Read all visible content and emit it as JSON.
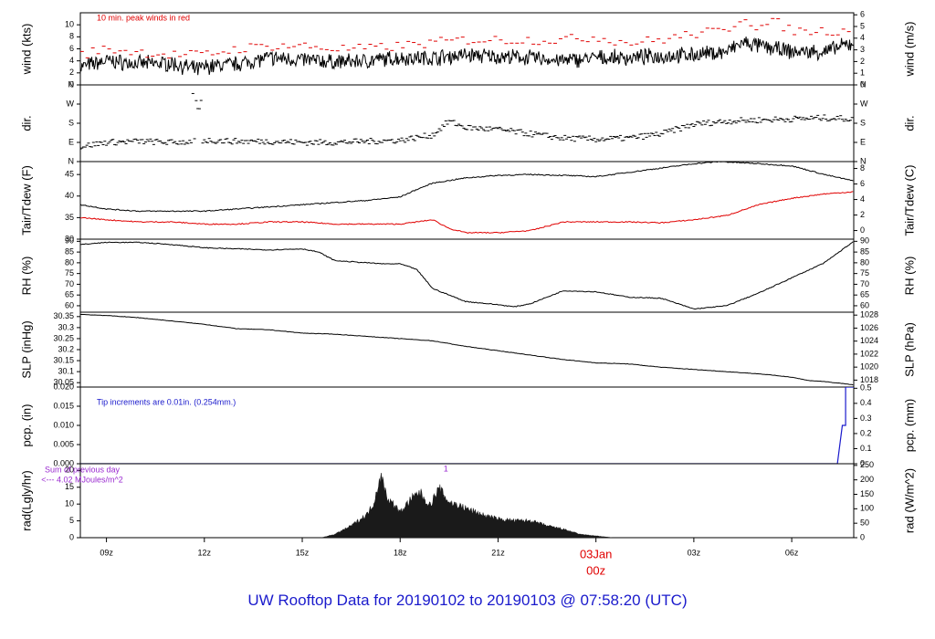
{
  "title": "UW Rooftop Data for 20190102  to  20190103 @ 07:58:20  (UTC)",
  "colors": {
    "black": "#000000",
    "red": "#e00000",
    "blue": "#1a1acc",
    "purple": "#9a2ad0"
  },
  "x_axis": {
    "range_hours": [
      8.2,
      31.9
    ],
    "ticks": [
      {
        "h": 9,
        "label": "09z"
      },
      {
        "h": 12,
        "label": "12z"
      },
      {
        "h": 15,
        "label": "15z"
      },
      {
        "h": 18,
        "label": "18z"
      },
      {
        "h": 21,
        "label": "21z"
      },
      {
        "h": 24,
        "label": ""
      },
      {
        "h": 27,
        "label": "03z"
      },
      {
        "h": 30,
        "label": "06z"
      }
    ],
    "day_marker": {
      "h": 24,
      "label1": "03Jan",
      "label2": "00z"
    }
  },
  "chart_data": [
    {
      "id": "wind",
      "type": "line",
      "ylabel_left": "wind (kts)",
      "ylabel_right": "wind (m/s)",
      "ylim": [
        0,
        12
      ],
      "left_ticks": [
        0,
        2,
        4,
        6,
        8,
        10
      ],
      "right_ticks_value": [
        0,
        1,
        2,
        3,
        4,
        5,
        6
      ],
      "annotation": "10 min. peak winds in red",
      "series": [
        {
          "role": "mean",
          "color": "#000000",
          "x": [
            8.2,
            9.0,
            10.0,
            11.0,
            11.8,
            12.0,
            13.0,
            14.0,
            15.0,
            16.0,
            17.0,
            18.0,
            19.0,
            20.0,
            21.0,
            22.0,
            23.0,
            24.0,
            25.0,
            26.0,
            27.0,
            28.0,
            28.5,
            29.0,
            30.0,
            31.0,
            31.9
          ],
          "y": [
            3.0,
            4.0,
            3.5,
            3.6,
            2.5,
            3.0,
            3.5,
            4.5,
            4.2,
            3.8,
            4.0,
            4.5,
            4.5,
            5.0,
            4.7,
            4.5,
            4.0,
            4.5,
            4.5,
            4.8,
            5.0,
            5.5,
            7.0,
            6.5,
            5.5,
            5.5,
            7.0
          ]
        },
        {
          "role": "peak",
          "color": "#e00000",
          "x": [
            8.2,
            9.0,
            10.0,
            11.0,
            12.0,
            13.0,
            14.0,
            15.0,
            16.0,
            17.0,
            18.0,
            19.0,
            20.0,
            21.0,
            22.0,
            23.0,
            24.0,
            25.0,
            26.0,
            27.0,
            28.0,
            28.5,
            29.0,
            29.5,
            30.0,
            31.0,
            31.9
          ],
          "y": [
            5.0,
            6.0,
            5.5,
            5.0,
            5.0,
            6.0,
            6.5,
            6.5,
            6.0,
            6.0,
            6.5,
            7.0,
            7.5,
            7.5,
            7.5,
            7.5,
            8.0,
            7.0,
            7.5,
            8.5,
            9.0,
            11.5,
            9.5,
            10.5,
            9.0,
            9.0,
            9.0
          ]
        }
      ]
    },
    {
      "id": "dir",
      "type": "scatter",
      "ylabel_left": "dir.",
      "ylabel_right": "dir.",
      "ylim": [
        0,
        360
      ],
      "tick_degrees": [
        0,
        90,
        180,
        270,
        360
      ],
      "tick_labels": [
        "N",
        "E",
        "S",
        "W",
        "N"
      ],
      "series": [
        {
          "color": "#000000",
          "x": [
            8.2,
            9.0,
            10.0,
            11.0,
            11.8,
            12.0,
            13.0,
            14.0,
            15.0,
            16.0,
            17.0,
            18.0,
            19.0,
            19.5,
            20.0,
            21.0,
            22.0,
            23.0,
            24.0,
            25.0,
            26.0,
            27.0,
            28.0,
            29.0,
            30.0,
            31.0,
            31.9
          ],
          "y": [
            70,
            90,
            95,
            90,
            95,
            100,
            95,
            95,
            90,
            90,
            95,
            100,
            125,
            190,
            160,
            150,
            130,
            110,
            105,
            110,
            130,
            175,
            190,
            195,
            200,
            205,
            200
          ]
        }
      ]
    },
    {
      "id": "temp",
      "type": "line",
      "ylabel_left": "Tair/Tdew (F)",
      "ylabel_right": "Tair/Tdew (C)",
      "ylim": [
        30,
        48
      ],
      "left_ticks": [
        30,
        35,
        40,
        45
      ],
      "right_ticks_value": [
        0,
        2,
        4,
        6,
        8
      ],
      "series": [
        {
          "name": "Tair",
          "color": "#000000",
          "x": [
            8.2,
            9.0,
            10.0,
            11.0,
            12.0,
            13.0,
            14.0,
            15.0,
            16.0,
            17.0,
            18.0,
            18.5,
            19.0,
            20.0,
            21.0,
            22.0,
            23.0,
            24.0,
            25.0,
            26.0,
            27.0,
            27.8,
            29.0,
            30.0,
            31.0,
            31.9
          ],
          "y": [
            38.0,
            37.0,
            36.5,
            36.5,
            36.5,
            37.0,
            37.5,
            38.0,
            38.5,
            39.0,
            39.8,
            41.5,
            43.0,
            44.2,
            44.8,
            45.0,
            44.8,
            44.5,
            45.5,
            46.5,
            47.5,
            48.0,
            47.5,
            47.0,
            45.0,
            43.5
          ]
        },
        {
          "name": "Tdew",
          "color": "#e00000",
          "x": [
            8.2,
            9.0,
            10.0,
            11.0,
            12.0,
            13.0,
            14.0,
            15.0,
            16.0,
            17.0,
            18.0,
            19.0,
            19.5,
            20.0,
            21.0,
            22.0,
            23.0,
            24.0,
            25.0,
            26.0,
            27.0,
            28.0,
            29.0,
            30.0,
            31.0,
            31.9
          ],
          "y": [
            35.0,
            34.5,
            34.0,
            34.0,
            33.5,
            33.5,
            34.0,
            34.0,
            33.5,
            33.5,
            33.5,
            34.5,
            32.5,
            31.5,
            31.5,
            32.0,
            34.0,
            34.0,
            34.0,
            33.8,
            34.5,
            35.5,
            38.0,
            39.5,
            40.5,
            41.0
          ]
        }
      ]
    },
    {
      "id": "rh",
      "type": "line",
      "ylabel_left": "RH (%)",
      "ylabel_right": "RH (%)",
      "ylim": [
        57,
        91
      ],
      "left_ticks": [
        60,
        65,
        70,
        75,
        80,
        85,
        90
      ],
      "right_ticks_value": [
        60,
        65,
        70,
        75,
        80,
        85,
        90
      ],
      "series": [
        {
          "color": "#000000",
          "x": [
            8.2,
            9.0,
            10.0,
            11.0,
            12.0,
            13.0,
            14.0,
            15.0,
            15.5,
            16.0,
            17.0,
            17.5,
            18.0,
            18.5,
            19.0,
            20.0,
            21.0,
            21.5,
            22.0,
            23.0,
            24.0,
            25.0,
            26.0,
            27.0,
            28.0,
            29.0,
            30.0,
            31.0,
            31.9
          ],
          "y": [
            88.5,
            89.5,
            89.5,
            88.5,
            87.0,
            86.5,
            86.0,
            86.5,
            85.0,
            81.0,
            80.0,
            79.5,
            79.5,
            77.0,
            68.0,
            62.0,
            60.5,
            59.5,
            61.0,
            67.0,
            66.5,
            64.0,
            63.5,
            58.5,
            60.0,
            66.0,
            73.0,
            80.0,
            90.0
          ]
        }
      ]
    },
    {
      "id": "slp",
      "type": "line",
      "ylabel_left": "SLP (inHg)",
      "ylabel_right": "SLP (hPa)",
      "ylim": [
        30.03,
        30.37
      ],
      "left_ticks": [
        30.05,
        30.1,
        30.15,
        30.2,
        30.25,
        30.3,
        30.35
      ],
      "right_ticks_value": [
        1018,
        1020,
        1022,
        1024,
        1026,
        1028
      ],
      "series": [
        {
          "color": "#000000",
          "x": [
            8.2,
            9.0,
            10.0,
            11.0,
            12.0,
            13.0,
            14.0,
            15.0,
            16.0,
            17.0,
            18.0,
            19.0,
            20.0,
            21.0,
            22.0,
            23.0,
            24.0,
            25.0,
            26.0,
            27.0,
            28.0,
            29.0,
            30.0,
            30.5,
            31.0,
            31.9
          ],
          "y": [
            30.36,
            30.355,
            30.345,
            30.33,
            30.315,
            30.295,
            30.29,
            30.275,
            30.27,
            30.26,
            30.25,
            30.24,
            30.215,
            30.195,
            30.175,
            30.155,
            30.14,
            30.135,
            30.12,
            30.11,
            30.1,
            30.09,
            30.075,
            30.06,
            30.055,
            30.04
          ]
        }
      ]
    },
    {
      "id": "pcp",
      "type": "line",
      "ylabel_left": "pcp. (in)",
      "ylabel_right": "pcp. (mm)",
      "ylim": [
        0,
        0.02
      ],
      "left_ticks": [
        0.0,
        0.005,
        0.01,
        0.015,
        0.02
      ],
      "left_tick_labels": [
        "0.000",
        "0.005",
        "0.010",
        "0.015",
        "0.020"
      ],
      "right_ticks_value": [
        0,
        0.1,
        0.2,
        0.3,
        0.4,
        0.5
      ],
      "annotation": "Tip increments are 0.01in. (0.254mm.)",
      "series": [
        {
          "color": "#1a1acc",
          "x": [
            8.2,
            31.4,
            31.55,
            31.55,
            31.65,
            31.65,
            31.9
          ],
          "y": [
            0.0,
            0.0,
            0.01,
            0.01,
            0.01,
            0.02,
            0.02
          ]
        }
      ]
    },
    {
      "id": "rad",
      "type": "area",
      "ylabel_left": "rad(Lgly/hr)",
      "ylabel_right": "rad (W/m^2)",
      "ylim": [
        0,
        22
      ],
      "left_ticks": [
        0,
        5,
        10,
        15,
        20
      ],
      "right_ticks_value": [
        0,
        50,
        100,
        150,
        200,
        250
      ],
      "annotation_top": "Sum of previous day",
      "annotation_bottom": "<--- 4.02 MJoules/m^2",
      "marker_label": "1",
      "series": [
        {
          "color": "#1a1a1a",
          "x": [
            15.6,
            16.0,
            16.5,
            17.0,
            17.2,
            17.4,
            17.6,
            18.0,
            18.3,
            18.6,
            18.9,
            19.2,
            19.5,
            19.8,
            20.2,
            20.6,
            21.0,
            21.5,
            22.0,
            22.5,
            23.0,
            23.5,
            24.0,
            24.5
          ],
          "y": [
            0.0,
            1.0,
            3.5,
            7.0,
            10.5,
            18.5,
            12.0,
            7.5,
            11.0,
            13.5,
            9.5,
            14.5,
            10.5,
            9.5,
            8.0,
            6.5,
            5.5,
            5.0,
            5.0,
            3.5,
            2.5,
            1.0,
            0.5,
            0.0
          ]
        }
      ]
    }
  ]
}
